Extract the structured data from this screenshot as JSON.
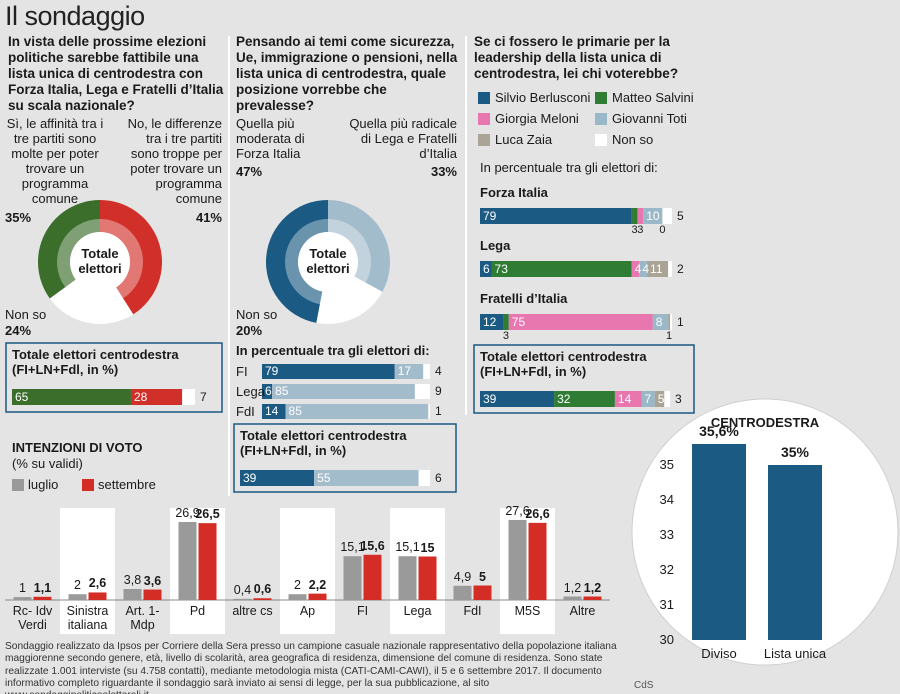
{
  "title": "Il sondaggio",
  "chart_data": [
    {
      "type": "donut",
      "question": "In vista delle prossime elezioni politiche sarebbe fattibile una lista unica di centrodestra con Forza Italia, Lega e Fratelli d’Italia su scala nazionale?",
      "center_label": "Totale elettori",
      "categories": [
        "Sì, le affinità tra i tre partiti sono molte per poter trovare un programma comune",
        "No, le differenze tra i tre partiti sono troppe per poter trovare un programma comune",
        "Non so"
      ],
      "values": [
        35,
        41,
        24
      ],
      "value_labels": [
        "35%",
        "41%",
        "24%"
      ],
      "colors": [
        "#3b6e2a",
        "#d1302a",
        "#ffffff"
      ],
      "total": {
        "title": "Totale elettori centrodestra (FI+LN+Fdl, in %)",
        "values": [
          65,
          28,
          7
        ]
      }
    },
    {
      "type": "donut",
      "question": "Pensando ai temi come sicurezza, Ue, immigrazione o pensioni, nella lista unica di centrodestra, quale posizione vorrebbe che prevalesse?",
      "center_label": "Totale elettori",
      "categories": [
        "Quella più moderata di Forza Italia",
        "Quella più radicale di Lega e Fratelli d’Italia",
        "Non so"
      ],
      "values": [
        47,
        33,
        20
      ],
      "value_labels": [
        "47%",
        "33%",
        "20%"
      ],
      "colors": [
        "#1b5a82",
        "#a3bccb",
        "#ffffff"
      ],
      "breakdown": {
        "subtitle": "In percentuale tra gli elettori di:",
        "categories": [
          "FI",
          "Lega",
          "FdI"
        ],
        "values": [
          [
            79,
            17,
            4
          ],
          [
            6,
            85,
            9
          ],
          [
            14,
            85,
            1
          ]
        ]
      },
      "total": {
        "title": "Totale elettori centrodestra (FI+LN+Fdl, in %)",
        "values": [
          39,
          55,
          6
        ]
      }
    },
    {
      "type": "stacked-bar",
      "question": "Se ci fossero le primarie per la leadership della lista unica di centrodestra, lei chi voterebbe?",
      "categories": [
        "Silvio Berlusconi",
        "Matteo Salvini",
        "Giorgia Meloni",
        "Giovanni Toti",
        "Luca Zaia",
        "Non so"
      ],
      "colors": [
        "#1b5a82",
        "#2f7d34",
        "#e777ae",
        "#9bb8c9",
        "#a9a496",
        "#ffffff"
      ],
      "breakdown": {
        "subtitle": "In percentuale tra gli elettori di:",
        "categories": [
          "Forza Italia",
          "Lega",
          "Fratelli d’Italia"
        ],
        "values": [
          [
            79,
            3,
            3,
            10,
            0,
            5
          ],
          [
            6,
            73,
            4,
            4,
            11,
            2
          ],
          [
            12,
            3,
            75,
            8,
            1,
            1
          ]
        ]
      },
      "total": {
        "title": "Totale elettori centrodestra (FI+LN+Fdl, in %)",
        "values": [
          39,
          32,
          14,
          7,
          5,
          3
        ]
      }
    },
    {
      "type": "bar",
      "title": "INTENZIONI DI VOTO",
      "subtitle": "(% su validi)",
      "categories": [
        "Rc- Idv Verdi",
        "Sinistra italiana",
        "Art. 1- Mdp",
        "Pd",
        "altre cs",
        "Ap",
        "FI",
        "Lega",
        "FdI",
        "M5S",
        "Altre"
      ],
      "series": [
        {
          "name": "luglio",
          "color": "#9a9a9a",
          "values": [
            1,
            2,
            3.8,
            26.9,
            0.4,
            2,
            15.1,
            15.1,
            4.9,
            27.6,
            1.2
          ],
          "value_labels": [
            "1",
            "2",
            "3,8",
            "26,9",
            "0,4",
            "2",
            "15,1",
            "15,1",
            "4,9",
            "27,6",
            "1,2"
          ]
        },
        {
          "name": "settembre",
          "color": "#d42d25",
          "values": [
            1.1,
            2.6,
            3.6,
            26.5,
            0.6,
            2.2,
            15.6,
            15,
            5,
            26.6,
            1.2
          ],
          "value_labels": [
            "1,1",
            "2,6",
            "3,6",
            "26,5",
            "0,6",
            "2,2",
            "15,6",
            "15",
            "5",
            "26,6",
            "1,2"
          ]
        }
      ],
      "ylim": [
        0,
        30
      ]
    },
    {
      "type": "bar",
      "title": "CENTRODESTRA",
      "categories": [
        "Diviso",
        "Lista unica"
      ],
      "values": [
        35.6,
        35
      ],
      "value_labels": [
        "35,6%",
        "35%"
      ],
      "color": "#1b5a82",
      "ylim": [
        30,
        36
      ],
      "yticks": [
        30,
        31,
        32,
        33,
        34,
        35
      ]
    }
  ],
  "footnote": "Sondaggio realizzato da Ipsos per Corriere della Sera presso un campione casuale nazionale rappresentativo della popolazione italiana maggiorenne secondo genere, età, livello di scolarità, area geografica di residenza, dimensione del comune di residenza. Sono state realizzate 1.001 interviste (su 4.758 contatti), mediante metodologia mista (CATI-CAMI-CAWI), il 5 e 6 settembre 2017. Il documento informativo completo riguardante il sondaggio sarà inviato ai sensi di legge, per la sua pubblicazione, al sito www.sondaggipoliticoelettorali.it.",
  "credit": "CdS"
}
